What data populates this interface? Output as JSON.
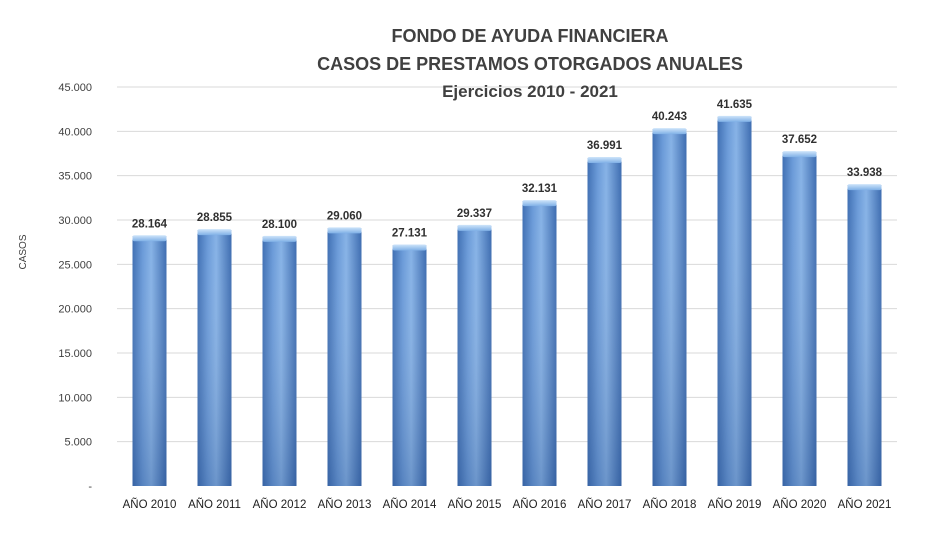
{
  "chart_data": {
    "type": "bar",
    "title": [
      "FONDO DE AYUDA FINANCIERA",
      "CASOS DE PRESTAMOS  OTORGADOS  ANUALES",
      "Ejercicios  2010 - 2021"
    ],
    "ylabel": "CASOS",
    "xlabel": "",
    "categories": [
      "AÑO 2010",
      "AÑO 2011",
      "AÑO 2012",
      "AÑO 2013",
      "AÑO 2014",
      "AÑO 2015",
      "AÑO 2016",
      "AÑO 2017",
      "AÑO 2018",
      "AÑO 2019",
      "AÑO 2020",
      "AÑO 2021"
    ],
    "values": [
      28164,
      28855,
      28100,
      29060,
      27131,
      29337,
      32131,
      36991,
      40243,
      41635,
      37652,
      33938
    ],
    "value_labels": [
      "28.164",
      "28.855",
      "28.100",
      "29.060",
      "27.131",
      "29.337",
      "32.131",
      "36.991",
      "40.243",
      "41.635",
      "37.652",
      "33.938"
    ],
    "ylim": [
      0,
      45000
    ],
    "yticks": [
      0,
      5000,
      10000,
      15000,
      20000,
      25000,
      30000,
      35000,
      40000,
      45000
    ],
    "ytick_labels": [
      "-",
      "5.000",
      "10.000",
      "15.000",
      "20.000",
      "25.000",
      "30.000",
      "35.000",
      "40.000",
      "45.000"
    ],
    "grid": true,
    "legend": "none",
    "colors": {
      "bar_light": "#9cc3ee",
      "bar_mid": "#6a9ad8",
      "bar_dark": "#3d6cb0",
      "bar_top": "#b9d8f5",
      "grid": "#d9d9d9"
    }
  }
}
